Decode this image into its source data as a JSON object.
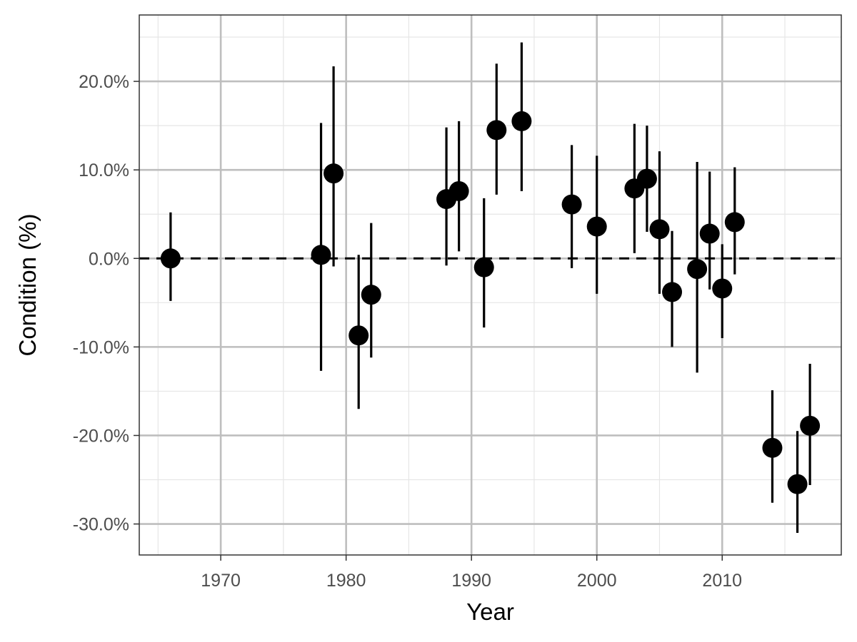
{
  "chart_data": {
    "type": "scatter",
    "xlabel": "Year",
    "ylabel": "Condition (%)",
    "xlim": [
      1963.5,
      2019.5
    ],
    "ylim": [
      -33.5,
      27.5
    ],
    "x_ticks": [
      1970,
      1980,
      1990,
      2000,
      2010
    ],
    "x_tick_labels": [
      "1970",
      "1980",
      "1990",
      "2000",
      "2010"
    ],
    "x_minor_ticks": [
      1965,
      1975,
      1985,
      1995,
      2005,
      2015
    ],
    "y_ticks": [
      -30,
      -20,
      -10,
      0,
      10,
      20
    ],
    "y_tick_labels": [
      "-30.0%",
      "-20.0%",
      "-10.0%",
      "0.0%",
      "10.0%",
      "20.0%"
    ],
    "y_minor_ticks": [
      -25,
      -15,
      -5,
      5,
      15,
      25
    ],
    "reference_line": {
      "y": 0,
      "style": "dashed"
    },
    "grid": true,
    "series": [
      {
        "points": [
          {
            "x": 1966,
            "y": 0.0,
            "low": -4.8,
            "high": 5.2
          },
          {
            "x": 1978,
            "y": 0.4,
            "low": -12.7,
            "high": 15.3
          },
          {
            "x": 1979,
            "y": 9.6,
            "low": -0.9,
            "high": 21.7
          },
          {
            "x": 1981,
            "y": -8.7,
            "low": -17.0,
            "high": 0.4
          },
          {
            "x": 1982,
            "y": -4.1,
            "low": -11.2,
            "high": 4.0
          },
          {
            "x": 1988,
            "y": 6.7,
            "low": -0.8,
            "high": 14.8
          },
          {
            "x": 1989,
            "y": 7.6,
            "low": 0.8,
            "high": 15.5
          },
          {
            "x": 1991,
            "y": -1.0,
            "low": -7.8,
            "high": 6.8
          },
          {
            "x": 1992,
            "y": 14.5,
            "low": 7.2,
            "high": 22.0
          },
          {
            "x": 1994,
            "y": 15.5,
            "low": 7.6,
            "high": 24.4
          },
          {
            "x": 1998,
            "y": 6.1,
            "low": -1.1,
            "high": 12.8
          },
          {
            "x": 2000,
            "y": 3.6,
            "low": -4.0,
            "high": 11.6
          },
          {
            "x": 2003,
            "y": 7.9,
            "low": 0.6,
            "high": 15.2
          },
          {
            "x": 2004,
            "y": 9.0,
            "low": 3.0,
            "high": 15.0
          },
          {
            "x": 2005,
            "y": 3.3,
            "low": -4.0,
            "high": 12.1
          },
          {
            "x": 2006,
            "y": -3.8,
            "low": -10.0,
            "high": 3.1
          },
          {
            "x": 2008,
            "y": -1.2,
            "low": -12.9,
            "high": 10.9
          },
          {
            "x": 2009,
            "y": 2.8,
            "low": -3.5,
            "high": 9.8
          },
          {
            "x": 2010,
            "y": -3.4,
            "low": -9.0,
            "high": 1.6
          },
          {
            "x": 2011,
            "y": 4.1,
            "low": -1.8,
            "high": 10.3
          },
          {
            "x": 2014,
            "y": -21.4,
            "low": -27.6,
            "high": -14.9
          },
          {
            "x": 2016,
            "y": -25.5,
            "low": -31.0,
            "high": -19.5
          },
          {
            "x": 2017,
            "y": -18.9,
            "low": -25.6,
            "high": -11.9
          }
        ]
      }
    ]
  },
  "colors": {
    "background": "#ffffff",
    "panel_border": "#333333",
    "grid_major": "#bebebe",
    "grid_minor": "#e6e6e6",
    "point": "#000000",
    "reference_line": "#000000"
  }
}
